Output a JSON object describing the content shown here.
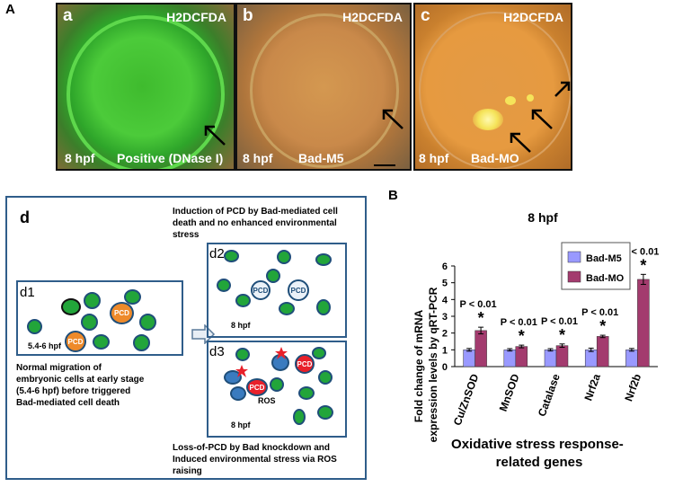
{
  "panel_a": {
    "letter": "A",
    "images": [
      {
        "letter": "a",
        "dye": "H2DCFDA",
        "caption_time": "8 hpf",
        "caption_label": "Positive (DNase I)"
      },
      {
        "letter": "b",
        "dye": "H2DCFDA",
        "caption_time": "8 hpf",
        "caption_label": "Bad-M5"
      },
      {
        "letter": "c",
        "dye": "H2DCFDA",
        "caption_time": "8 hpf",
        "caption_label": "Bad-MO"
      }
    ]
  },
  "panel_d": {
    "letter": "d",
    "d1": {
      "label": "d1",
      "stage": "5.4-6 hpf",
      "pcd": "PCD",
      "caption": [
        "Normal migration of",
        "embryonic cells at early stage",
        "(5.4-6 hpf) before triggered",
        "Bad-mediated cell death"
      ]
    },
    "d2": {
      "label": "d2",
      "stage": "8 hpf",
      "pcd": "PCD",
      "caption": [
        "Induction of PCD by Bad-mediated cell",
        "death and no enhanced environmental",
        "stress"
      ]
    },
    "d3": {
      "label": "d3",
      "stage": "8 hpf",
      "pcd": "PCD",
      "ros": "ROS",
      "caption": [
        "Loss-of-PCD by Bad knockdown and",
        "Induced environmental stress via ROS",
        "raising"
      ]
    }
  },
  "panel_b": {
    "letter": "B"
  },
  "chart_data": {
    "type": "bar",
    "title": "8 hpf",
    "ylabel": "Fold change of mRNA expression levels by qRT-PCR",
    "xlabel": "Oxidative stress response-related genes",
    "categories": [
      "Cu/ZnSOD",
      "MnSOD",
      "Catalase",
      "Nrf2a",
      "Nrf2b"
    ],
    "ylim": [
      0,
      6
    ],
    "yticks": [
      0,
      1,
      2,
      3,
      4,
      5,
      6
    ],
    "series": [
      {
        "name": "Bad-M5",
        "color": "#9999ff",
        "values": [
          1.0,
          1.0,
          1.0,
          1.0,
          1.0
        ],
        "errors": [
          0.08,
          0.07,
          0.07,
          0.1,
          0.08
        ]
      },
      {
        "name": "Bad-MO",
        "color": "#a33b6e",
        "values": [
          2.15,
          1.2,
          1.25,
          1.8,
          5.2
        ],
        "errors": [
          0.2,
          0.08,
          0.1,
          0.07,
          0.3
        ]
      }
    ],
    "significance": [
      "P < 0.01",
      "P < 0.01",
      "P < 0.01",
      "P < 0.01",
      "P < 0.01"
    ],
    "star": "*",
    "legend_position": "top-right",
    "colors": {
      "axis": "#000000",
      "gridlines": "none"
    }
  }
}
